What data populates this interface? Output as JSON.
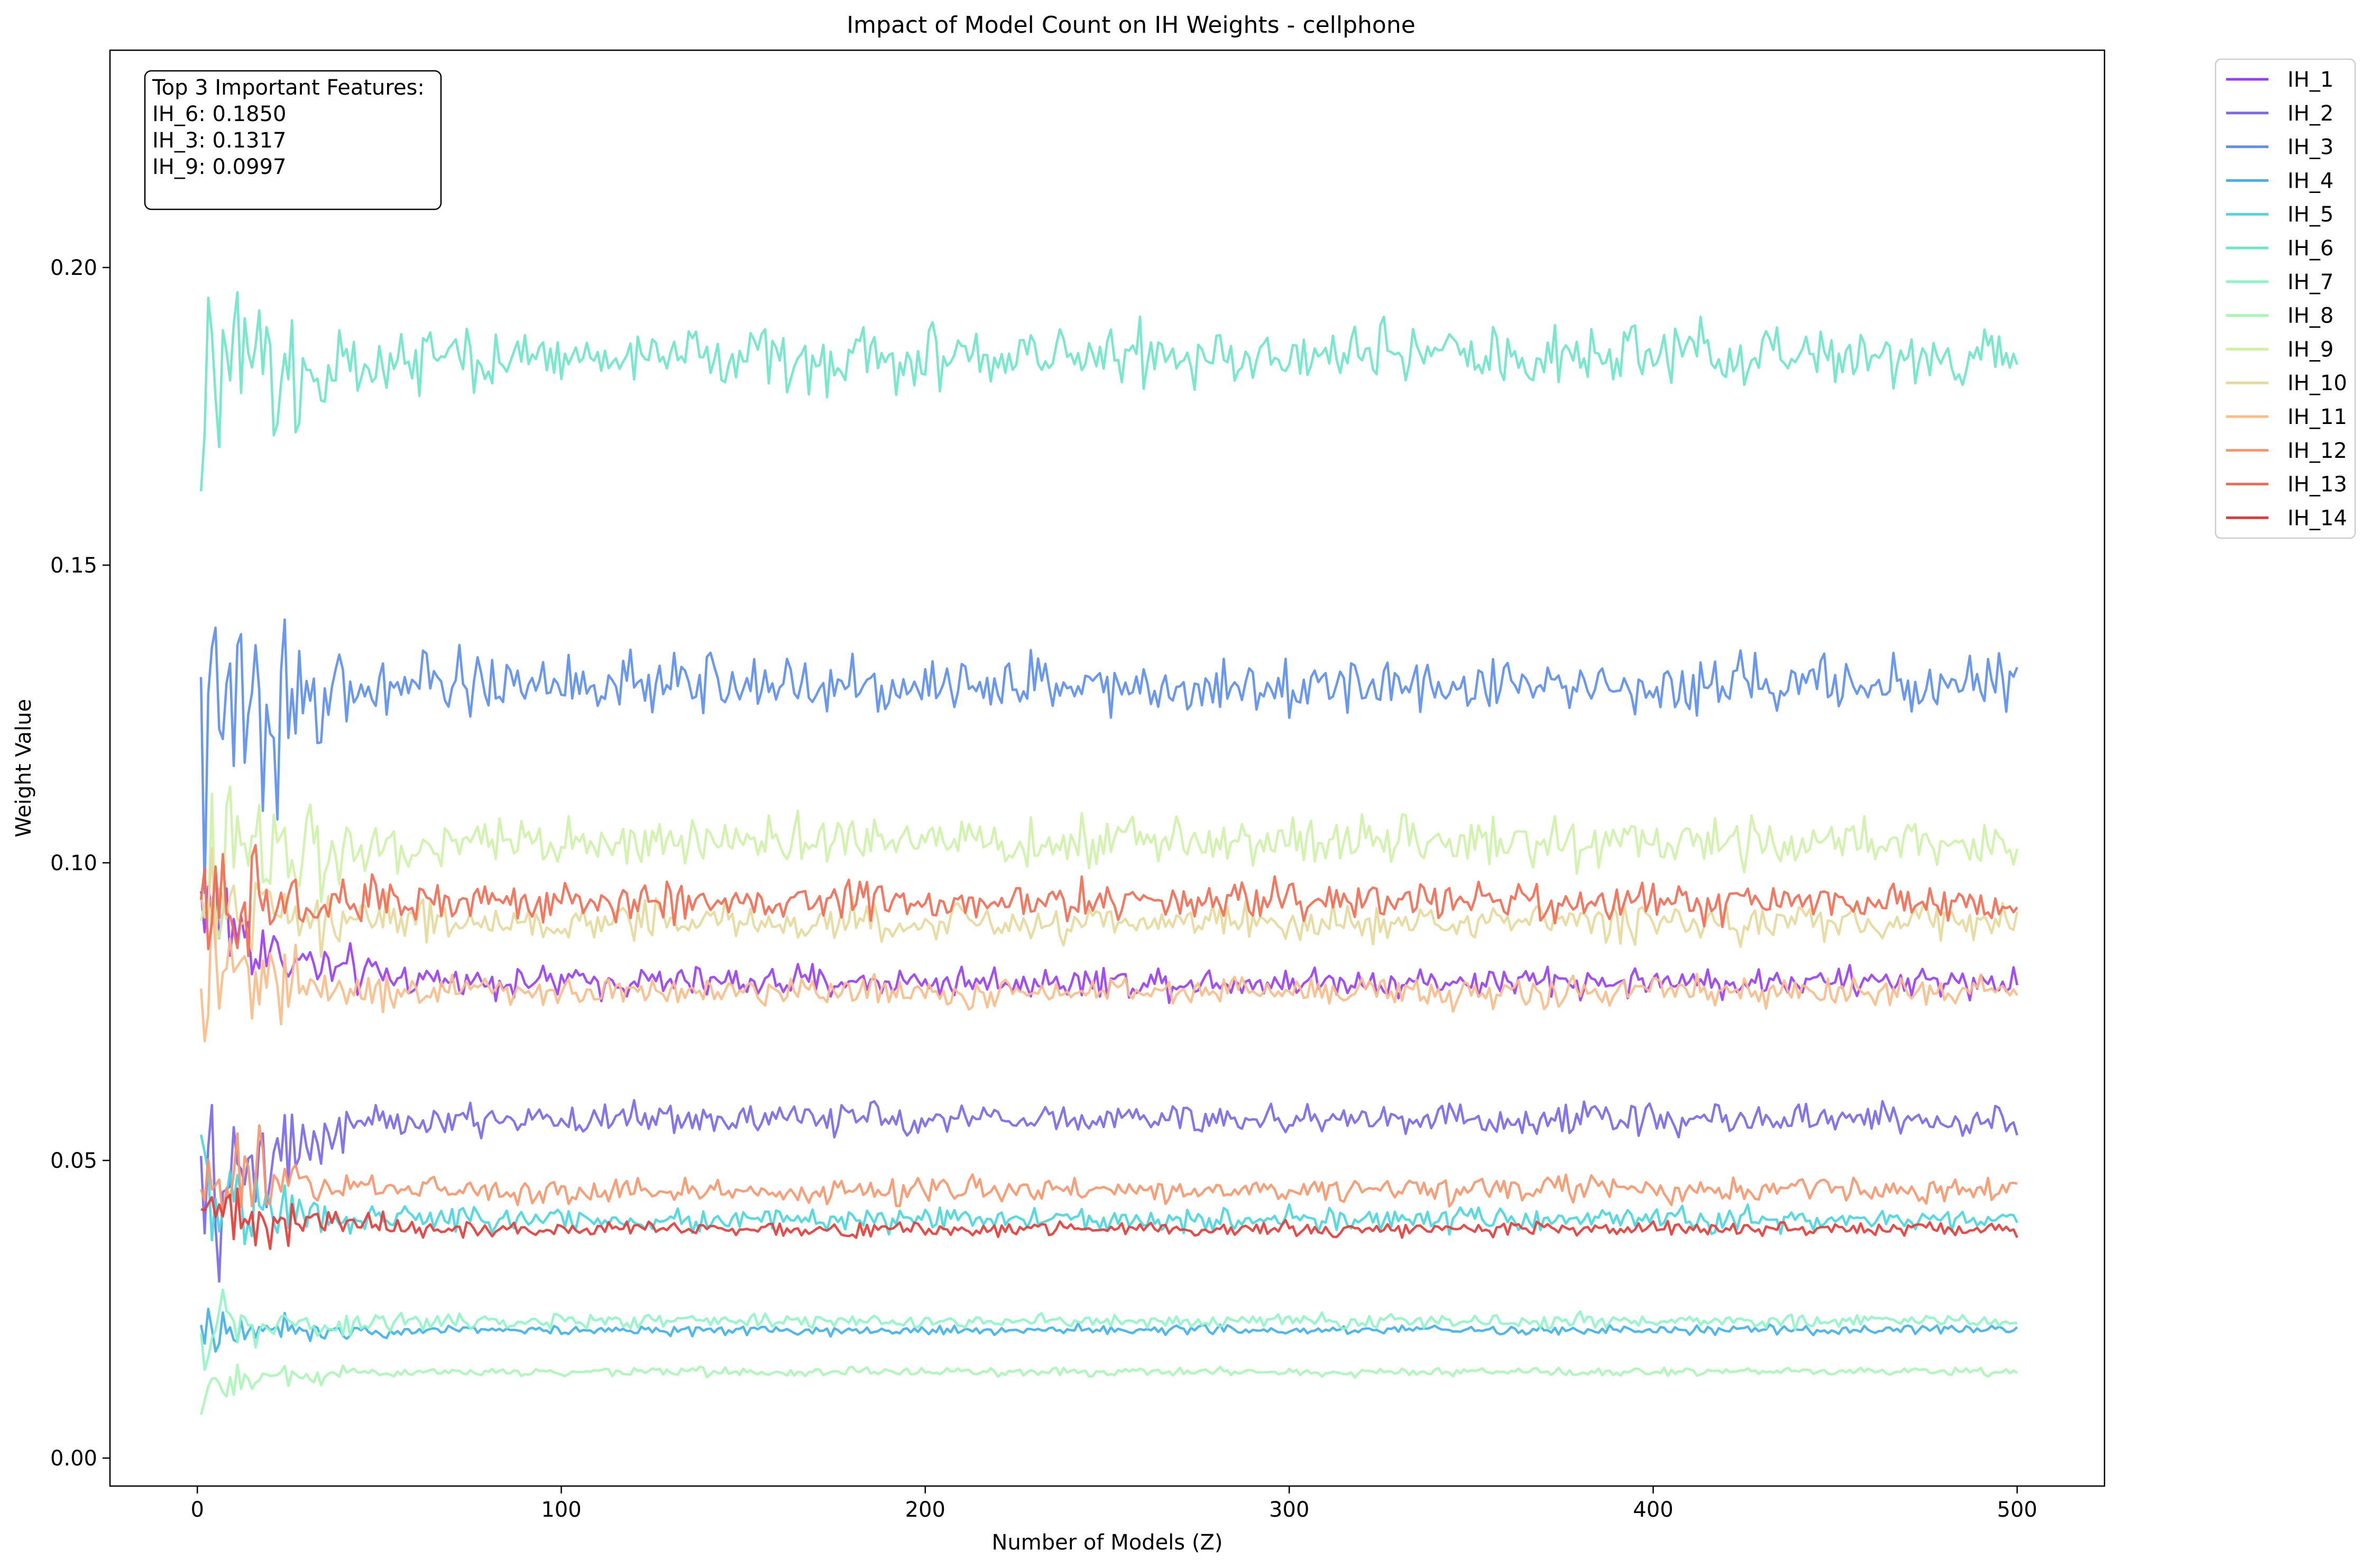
{
  "chart_data": {
    "type": "line",
    "title": "Impact of Model Count on IH Weights - cellphone",
    "xlabel": "Number of Models (Z)",
    "ylabel": "Weight Value",
    "xlim": [
      -24,
      524
    ],
    "ylim": [
      -0.0047,
      0.2365
    ],
    "xticks": [
      0,
      100,
      200,
      300,
      400,
      500
    ],
    "xtick_labels": [
      "0",
      "100",
      "200",
      "300",
      "400",
      "500"
    ],
    "yticks": [
      0.0,
      0.05,
      0.1,
      0.15,
      0.2
    ],
    "ytick_labels": [
      "0.00",
      "0.05",
      "0.10",
      "0.15",
      "0.20"
    ],
    "grid": false,
    "legend_placement": "outside-top-right",
    "x_range": [
      1,
      500
    ],
    "series": [
      {
        "name": "IH_1",
        "color": "#9b3df8",
        "level": 0.08,
        "noise": 0.0025,
        "start": 0.095,
        "startNoise": 0.012
      },
      {
        "name": "IH_2",
        "color": "#7b68ee",
        "level": 0.057,
        "noise": 0.0025,
        "start": 0.04,
        "startNoise": 0.015
      },
      {
        "name": "IH_3",
        "color": "#5b8ff0",
        "level": 0.13,
        "noise": 0.0045,
        "start": 0.12,
        "startNoise": 0.028
      },
      {
        "name": "IH_4",
        "color": "#3fb2ea",
        "level": 0.0215,
        "noise": 0.0008,
        "start": 0.022,
        "startNoise": 0.004
      },
      {
        "name": "IH_5",
        "color": "#45d8e0",
        "level": 0.04,
        "noise": 0.0018,
        "start": 0.045,
        "startNoise": 0.012
      },
      {
        "name": "IH_6",
        "color": "#6ae6c8",
        "level": 0.185,
        "noise": 0.005,
        "start": 0.175,
        "startNoise": 0.022
      },
      {
        "name": "IH_7",
        "color": "#8ef5c6",
        "level": 0.023,
        "noise": 0.0012,
        "start": 0.02,
        "startNoise": 0.006
      },
      {
        "name": "IH_8",
        "color": "#a8f6b4",
        "level": 0.0145,
        "noise": 0.0007,
        "start": 0.012,
        "startNoise": 0.004
      },
      {
        "name": "IH_9",
        "color": "#cdf2a6",
        "level": 0.1035,
        "noise": 0.004,
        "start": 0.1,
        "startNoise": 0.02
      },
      {
        "name": "IH_10",
        "color": "#e5d99a",
        "level": 0.09,
        "noise": 0.003,
        "start": 0.092,
        "startNoise": 0.012
      },
      {
        "name": "IH_11",
        "color": "#fcbc88",
        "level": 0.0785,
        "noise": 0.0025,
        "start": 0.08,
        "startNoise": 0.012
      },
      {
        "name": "IH_12",
        "color": "#fb9569",
        "level": 0.045,
        "noise": 0.002,
        "start": 0.05,
        "startNoise": 0.012
      },
      {
        "name": "IH_13",
        "color": "#f56a50",
        "level": 0.0935,
        "noise": 0.003,
        "start": 0.09,
        "startNoise": 0.012
      },
      {
        "name": "IH_14",
        "color": "#e83a35",
        "level": 0.0385,
        "noise": 0.0012,
        "start": 0.042,
        "startNoise": 0.01
      }
    ],
    "annotation": {
      "lines": [
        "Top 3 Important Features:",
        "IH_6: 0.1850",
        "IH_3: 0.1317",
        "IH_9: 0.0997"
      ],
      "placement": "top-left"
    }
  }
}
